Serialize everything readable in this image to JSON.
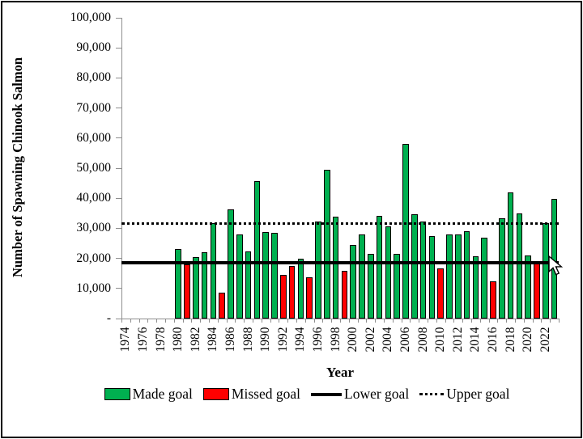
{
  "chart_data": {
    "type": "bar",
    "title": "",
    "ylabel": "Number of Spawning Chinook Salmon",
    "xlabel": "Year",
    "ylim": [
      0,
      100000
    ],
    "ytick_interval": 10000,
    "ytick_labels": [
      "-",
      "10,000",
      "20,000",
      "30,000",
      "40,000",
      "50,000",
      "60,000",
      "70,000",
      "80,000",
      "90,000",
      "100,000"
    ],
    "grid": false,
    "legend_position": "bottom",
    "x_axis": {
      "first_year": 1974,
      "last_year": 2023,
      "label_years": [
        1974,
        1976,
        1978,
        1980,
        1982,
        1984,
        1986,
        1988,
        1990,
        1992,
        1994,
        1996,
        1998,
        2000,
        2002,
        2004,
        2006,
        2008,
        2010,
        2012,
        2014,
        2016,
        2018,
        2020,
        2022
      ]
    },
    "bars": [
      {
        "year": 1980,
        "value": 23000,
        "status": "made"
      },
      {
        "year": 1981,
        "value": 18100,
        "status": "missed"
      },
      {
        "year": 1982,
        "value": 20400,
        "status": "made"
      },
      {
        "year": 1983,
        "value": 22100,
        "status": "made"
      },
      {
        "year": 1984,
        "value": 31800,
        "status": "made"
      },
      {
        "year": 1985,
        "value": 8700,
        "status": "missed"
      },
      {
        "year": 1986,
        "value": 36300,
        "status": "made"
      },
      {
        "year": 1987,
        "value": 28000,
        "status": "made"
      },
      {
        "year": 1988,
        "value": 22300,
        "status": "made"
      },
      {
        "year": 1989,
        "value": 45700,
        "status": "made"
      },
      {
        "year": 1990,
        "value": 28700,
        "status": "made"
      },
      {
        "year": 1991,
        "value": 28400,
        "status": "made"
      },
      {
        "year": 1992,
        "value": 14400,
        "status": "missed"
      },
      {
        "year": 1993,
        "value": 17500,
        "status": "missed"
      },
      {
        "year": 1994,
        "value": 20000,
        "status": "made"
      },
      {
        "year": 1995,
        "value": 13800,
        "status": "missed"
      },
      {
        "year": 1996,
        "value": 32400,
        "status": "made"
      },
      {
        "year": 1997,
        "value": 49500,
        "status": "made"
      },
      {
        "year": 1998,
        "value": 34000,
        "status": "made"
      },
      {
        "year": 1999,
        "value": 16000,
        "status": "missed"
      },
      {
        "year": 2000,
        "value": 24500,
        "status": "made"
      },
      {
        "year": 2001,
        "value": 28100,
        "status": "made"
      },
      {
        "year": 2002,
        "value": 21600,
        "status": "made"
      },
      {
        "year": 2003,
        "value": 34200,
        "status": "made"
      },
      {
        "year": 2004,
        "value": 30600,
        "status": "made"
      },
      {
        "year": 2005,
        "value": 21600,
        "status": "made"
      },
      {
        "year": 2006,
        "value": 58000,
        "status": "made"
      },
      {
        "year": 2007,
        "value": 34600,
        "status": "made"
      },
      {
        "year": 2008,
        "value": 32400,
        "status": "made"
      },
      {
        "year": 2009,
        "value": 27500,
        "status": "made"
      },
      {
        "year": 2010,
        "value": 16700,
        "status": "missed"
      },
      {
        "year": 2011,
        "value": 28000,
        "status": "made"
      },
      {
        "year": 2012,
        "value": 27900,
        "status": "made"
      },
      {
        "year": 2013,
        "value": 29000,
        "status": "made"
      },
      {
        "year": 2014,
        "value": 20700,
        "status": "made"
      },
      {
        "year": 2015,
        "value": 26800,
        "status": "made"
      },
      {
        "year": 2016,
        "value": 12500,
        "status": "missed"
      },
      {
        "year": 2017,
        "value": 33400,
        "status": "made"
      },
      {
        "year": 2018,
        "value": 42000,
        "status": "made"
      },
      {
        "year": 2019,
        "value": 35000,
        "status": "made"
      },
      {
        "year": 2020,
        "value": 21000,
        "status": "made"
      },
      {
        "year": 2021,
        "value": 18300,
        "status": "missed"
      },
      {
        "year": 2022,
        "value": 31800,
        "status": "made"
      },
      {
        "year": 2023,
        "value": 39700,
        "status": "made"
      }
    ],
    "goal_lines": {
      "lower_goal": 18500,
      "upper_goal": 31500
    },
    "legend": [
      {
        "label": "Made goal",
        "type": "box",
        "color": "#00B050"
      },
      {
        "label": "Missed goal",
        "type": "box",
        "color": "#FF0000"
      },
      {
        "label": "Lower goal",
        "type": "solid-line",
        "color": "#000000"
      },
      {
        "label": "Upper goal",
        "type": "dotted-line",
        "color": "#000000"
      }
    ],
    "colors": {
      "made_goal": "#00B050",
      "missed_goal": "#FF0000",
      "goal_lines": "#000000",
      "axis": "#8E8E8E"
    }
  },
  "icons": {
    "mouse_cursor": "arrow-pointer"
  }
}
